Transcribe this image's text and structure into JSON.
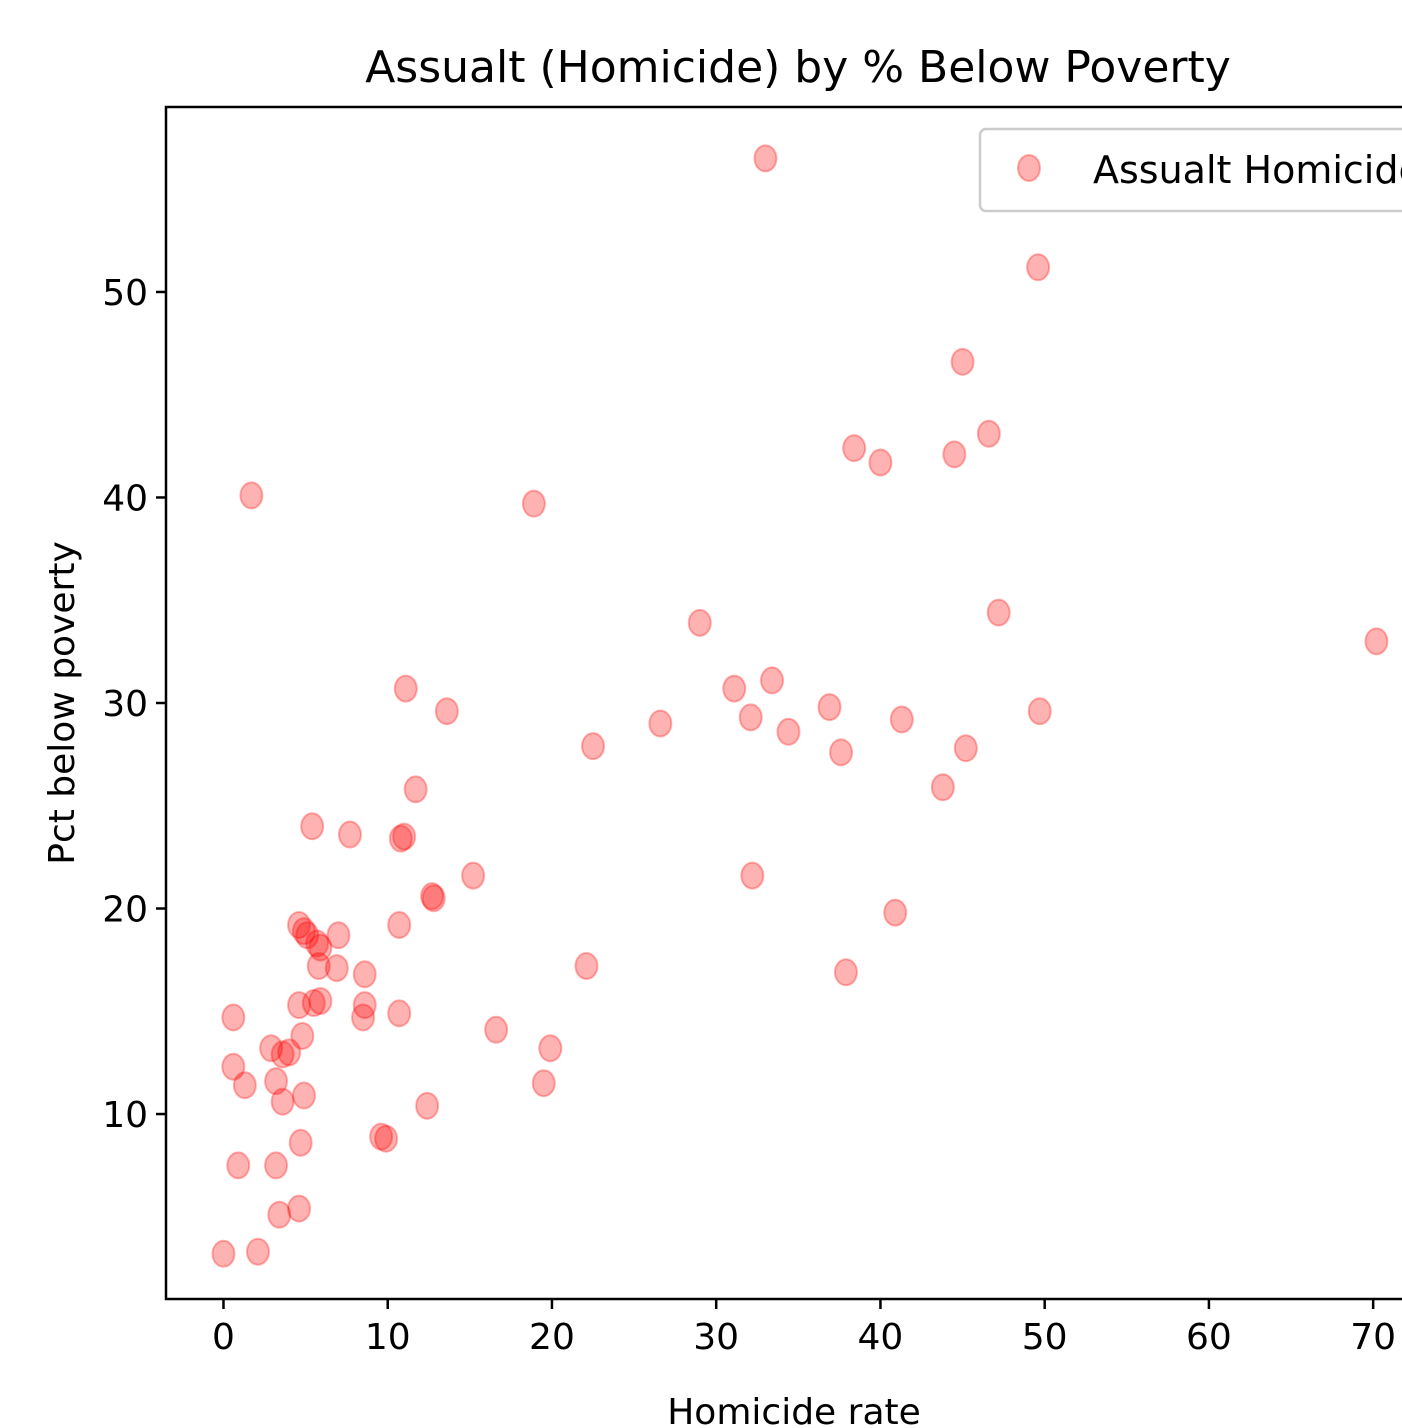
{
  "chart_data": {
    "type": "scatter",
    "title": "Assualt (Homicide) by % Below Poverty",
    "xlabel": "Homicide rate",
    "ylabel": "Pct below poverty",
    "xlim": [
      -3.5,
      72
    ],
    "ylim": [
      1,
      59
    ],
    "xticks": [
      0,
      10,
      20,
      30,
      40,
      50,
      60,
      70
    ],
    "yticks": [
      10,
      20,
      30,
      40,
      50
    ],
    "grid": false,
    "legend_position": "top-right",
    "series": [
      {
        "name": "Assualt Homicide",
        "color": "#ff0000",
        "alpha": 0.3,
        "marker": "circle",
        "points": [
          [
            33.0,
            56.5
          ],
          [
            49.6,
            51.2
          ],
          [
            45.0,
            46.6
          ],
          [
            46.6,
            43.1
          ],
          [
            38.4,
            42.4
          ],
          [
            40.0,
            41.7
          ],
          [
            44.5,
            42.1
          ],
          [
            1.7,
            40.1
          ],
          [
            18.9,
            39.7
          ],
          [
            29.0,
            33.9
          ],
          [
            47.2,
            34.4
          ],
          [
            70.2,
            33.0
          ],
          [
            33.4,
            31.1
          ],
          [
            31.1,
            30.7
          ],
          [
            11.1,
            30.7
          ],
          [
            13.6,
            29.6
          ],
          [
            36.9,
            29.8
          ],
          [
            49.7,
            29.6
          ],
          [
            26.6,
            29.0
          ],
          [
            32.1,
            29.3
          ],
          [
            41.3,
            29.2
          ],
          [
            34.4,
            28.6
          ],
          [
            22.5,
            27.9
          ],
          [
            37.6,
            27.6
          ],
          [
            45.2,
            27.8
          ],
          [
            11.7,
            25.8
          ],
          [
            43.8,
            25.9
          ],
          [
            5.4,
            24.0
          ],
          [
            7.7,
            23.6
          ],
          [
            11.0,
            23.5
          ],
          [
            10.8,
            23.4
          ],
          [
            15.2,
            21.6
          ],
          [
            32.2,
            21.6
          ],
          [
            12.7,
            20.6
          ],
          [
            12.8,
            20.5
          ],
          [
            40.9,
            19.8
          ],
          [
            10.7,
            19.2
          ],
          [
            4.6,
            19.2
          ],
          [
            4.9,
            18.9
          ],
          [
            5.1,
            18.7
          ],
          [
            7.0,
            18.7
          ],
          [
            5.7,
            18.3
          ],
          [
            5.9,
            18.1
          ],
          [
            5.8,
            17.2
          ],
          [
            6.9,
            17.1
          ],
          [
            22.1,
            17.2
          ],
          [
            8.6,
            16.8
          ],
          [
            37.9,
            16.9
          ],
          [
            5.9,
            15.5
          ],
          [
            5.5,
            15.4
          ],
          [
            4.6,
            15.3
          ],
          [
            8.6,
            15.3
          ],
          [
            10.7,
            14.9
          ],
          [
            0.6,
            14.7
          ],
          [
            8.5,
            14.7
          ],
          [
            16.6,
            14.1
          ],
          [
            4.8,
            13.8
          ],
          [
            2.9,
            13.2
          ],
          [
            19.9,
            13.2
          ],
          [
            4.0,
            13.0
          ],
          [
            3.6,
            12.9
          ],
          [
            0.6,
            12.3
          ],
          [
            1.3,
            11.4
          ],
          [
            3.2,
            11.6
          ],
          [
            19.5,
            11.5
          ],
          [
            4.9,
            10.9
          ],
          [
            3.6,
            10.6
          ],
          [
            12.4,
            10.4
          ],
          [
            9.6,
            8.9
          ],
          [
            9.9,
            8.8
          ],
          [
            4.7,
            8.6
          ],
          [
            0.9,
            7.5
          ],
          [
            3.2,
            7.5
          ],
          [
            4.6,
            5.4
          ],
          [
            3.4,
            5.1
          ],
          [
            0.0,
            3.2
          ],
          [
            2.1,
            3.3
          ]
        ]
      }
    ]
  }
}
